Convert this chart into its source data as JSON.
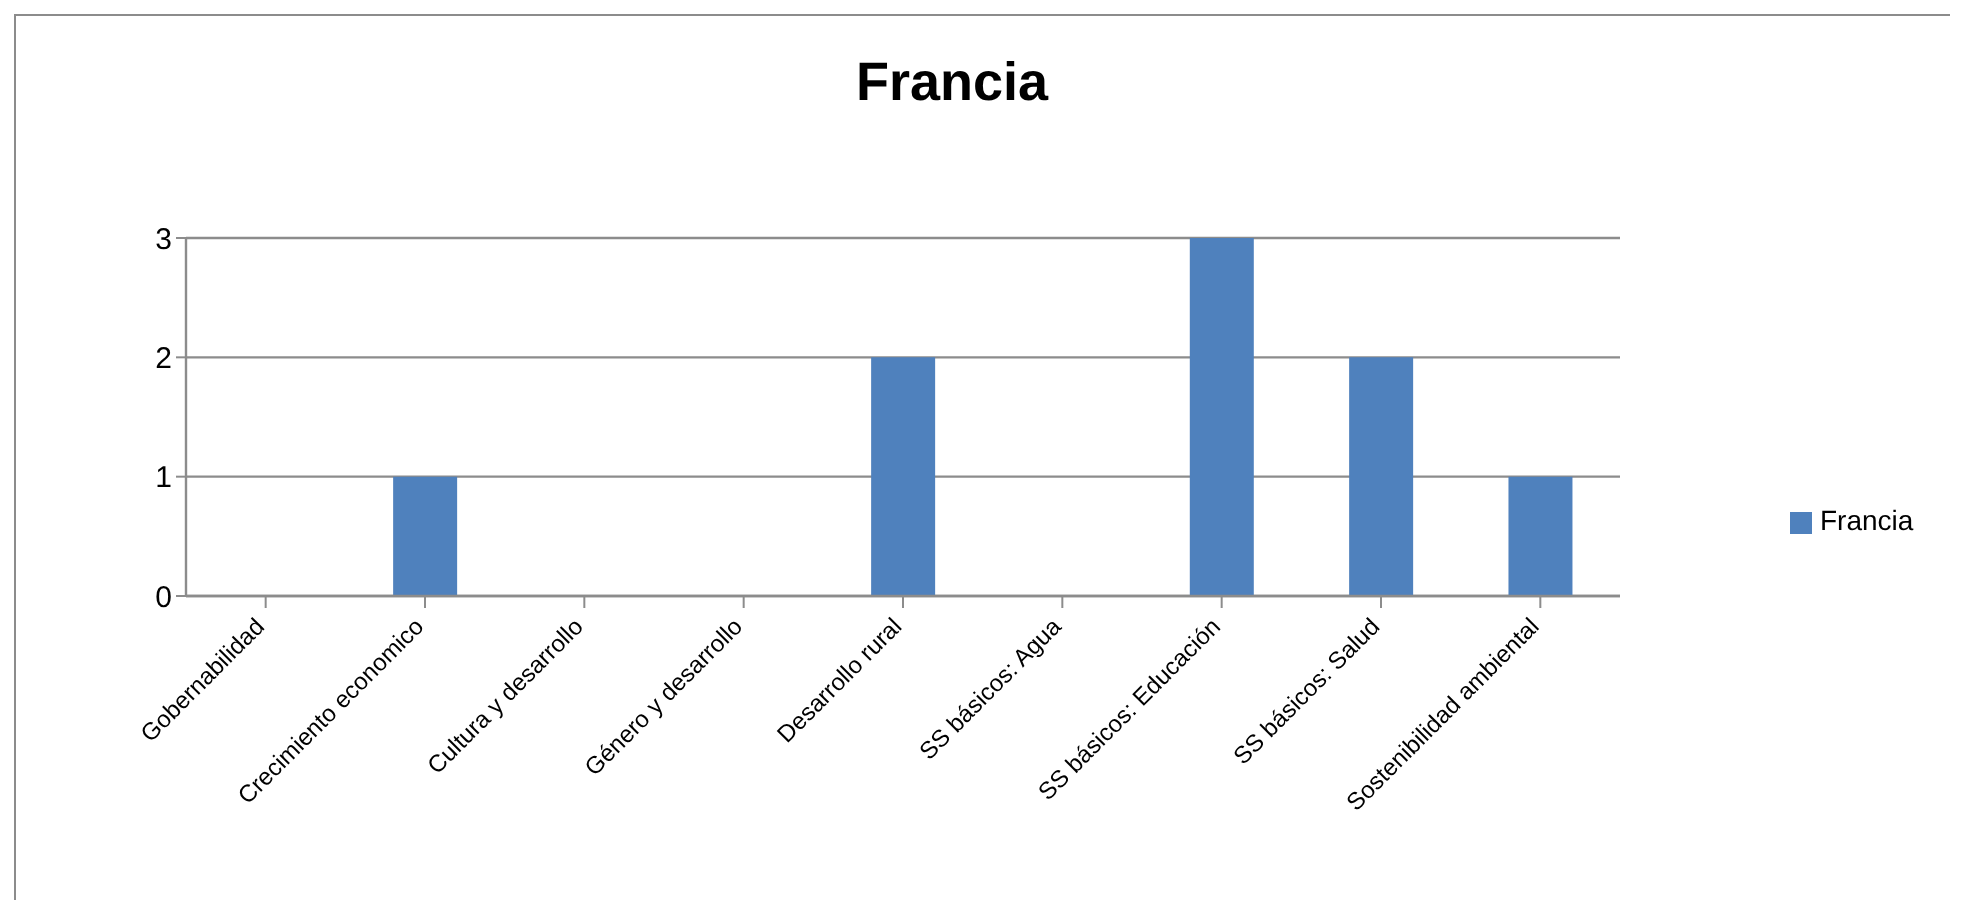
{
  "chart_data": {
    "type": "bar",
    "title": "Francia",
    "categories": [
      "Gobernabilidad",
      "Crecimiento economico",
      "Cultura y desarrollo",
      "Género y desarrollo",
      "Desarrollo rural",
      "SS básicos: Agua",
      "SS básicos: Educación",
      "SS básicos: Salud",
      "Sostenibilidad ambiental"
    ],
    "series": [
      {
        "name": "Francia",
        "color": "#4f81bd",
        "values": [
          0,
          1,
          0,
          0,
          2,
          0,
          3,
          2,
          1
        ]
      }
    ],
    "ylim": [
      0,
      3
    ],
    "yticks": [
      0,
      1,
      2,
      3
    ],
    "grid": "y",
    "legend": "right"
  }
}
